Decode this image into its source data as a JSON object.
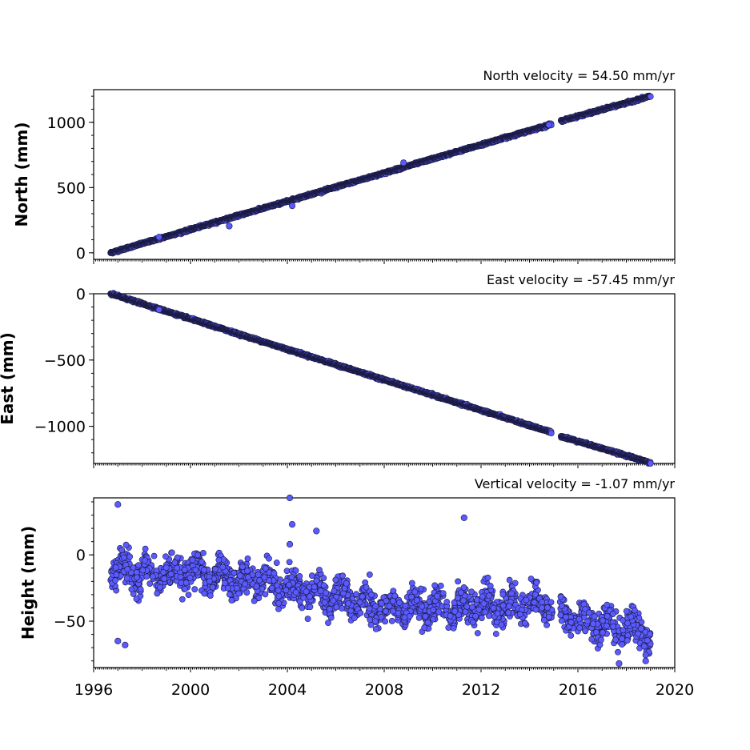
{
  "chart_data": [
    {
      "type": "scatter",
      "title": "North velocity = 54.50 mm/yr",
      "ylabel": "North (mm)",
      "xlabel": "",
      "ylim": [
        -50,
        1250
      ],
      "yticks": [
        0,
        500,
        1000
      ],
      "ytick_labels": [
        "0",
        "500",
        "1000"
      ],
      "series": [
        {
          "segments": [
            {
              "x": [
                1996.7,
                2014.9
              ],
              "y": [
                0,
                985
              ]
            },
            {
              "x": [
                2015.3,
                2019.0
              ],
              "y": [
                1010,
                1200
              ]
            }
          ],
          "outliers": [
            [
              1998.7,
              120
            ],
            [
              2001.6,
              205
            ],
            [
              2004.2,
              360
            ],
            [
              2008.8,
              690
            ],
            [
              2014.8,
              980
            ]
          ]
        }
      ]
    },
    {
      "type": "scatter",
      "title": "East velocity = -57.45 mm/yr",
      "ylabel": "East (mm)",
      "xlabel": "",
      "ylim": [
        -1280,
        0
      ],
      "yticks": [
        0,
        -500,
        -1000
      ],
      "ytick_labels": [
        "0",
        "−500",
        "−1000"
      ],
      "series": [
        {
          "segments": [
            {
              "x": [
                1996.7,
                2014.9
              ],
              "y": [
                0,
                -1045
              ]
            },
            {
              "x": [
                2015.3,
                2019.0
              ],
              "y": [
                -1075,
                -1275
              ]
            }
          ],
          "outliers": [
            [
              1998.7,
              -120
            ]
          ]
        }
      ]
    },
    {
      "type": "scatter",
      "title": "Vertical velocity = -1.07 mm/yr",
      "ylabel": "Height (mm)",
      "xlabel": "",
      "ylim": [
        -85,
        43
      ],
      "yticks": [
        0,
        -50
      ],
      "ytick_labels": [
        "0",
        "−50"
      ],
      "series": [
        {
          "trend": [
            [
              1996.7,
              -10
            ],
            [
              1998.0,
              -15
            ],
            [
              2000.0,
              -12
            ],
            [
              2002.0,
              -18
            ],
            [
              2004.0,
              -25
            ],
            [
              2006.0,
              -32
            ],
            [
              2008.0,
              -40
            ],
            [
              2010.0,
              -40
            ],
            [
              2012.0,
              -38
            ],
            [
              2014.0,
              -38
            ],
            [
              2014.9,
              -38
            ],
            [
              2015.3,
              -45
            ],
            [
              2017.0,
              -52
            ],
            [
              2019.0,
              -60
            ]
          ],
          "gap": [
            2014.95,
            2015.25
          ],
          "outliers": [
            [
              1997.0,
              38
            ],
            [
              1997.0,
              -65
            ],
            [
              1997.3,
              -68
            ],
            [
              2004.1,
              43
            ],
            [
              2004.2,
              23
            ],
            [
              2004.1,
              8
            ],
            [
              2005.2,
              18
            ],
            [
              2011.3,
              28
            ],
            [
              2017.7,
              -82
            ],
            [
              2018.8,
              -80
            ]
          ]
        }
      ]
    }
  ],
  "x_axis": {
    "xlim": [
      1996,
      2020
    ],
    "ticks": [
      1996,
      2000,
      2004,
      2008,
      2012,
      2016,
      2020
    ],
    "tick_labels": [
      "1996",
      "2000",
      "2004",
      "2008",
      "2012",
      "2016",
      "2020"
    ]
  },
  "colors": {
    "marker_fill": "#5a5aff",
    "marker_edge": "#1a1a40",
    "axes": "#000000",
    "background": "#ffffff"
  }
}
